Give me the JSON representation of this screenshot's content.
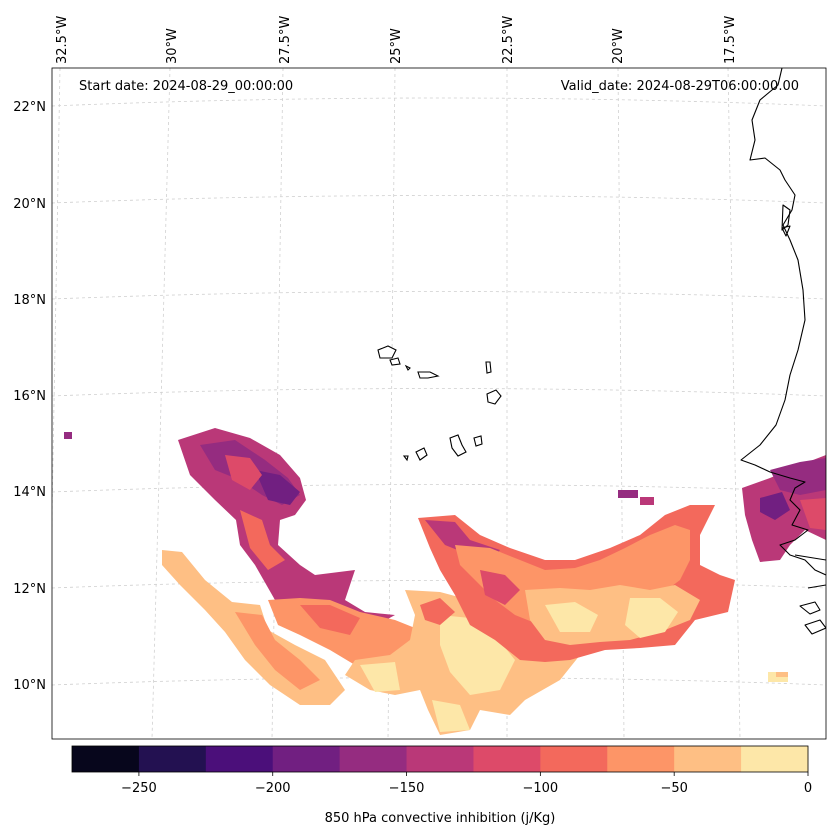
{
  "annotations": {
    "start_date": "Start date: 2024-08-29_00:00:00",
    "valid_date": "Valid_date: 2024-08-29T06:00:00.00"
  },
  "map": {
    "projection": "lambert-conformal",
    "lon_ticks": [
      "32.5°W",
      "30°W",
      "27.5°W",
      "25°W",
      "22.5°W",
      "20°W",
      "17.5°W"
    ],
    "lat_ticks": [
      "22°N",
      "20°N",
      "18°N",
      "16°N",
      "14°N",
      "12°N",
      "10°N"
    ],
    "gridlines": true,
    "features": [
      "coastline",
      "cape-verde-islands",
      "west-africa-coast"
    ]
  },
  "colorbar": {
    "label": "850 hPa convective inhibition (j/Kg)",
    "tick_labels": [
      "−250",
      "−200",
      "−150",
      "−100",
      "−50",
      "0"
    ],
    "levels": [
      -275,
      -250,
      -225,
      -200,
      -175,
      -150,
      -125,
      -100,
      -75,
      -50,
      -25,
      0
    ],
    "colors": [
      "#07061c",
      "#231151",
      "#4b0f7a",
      "#711f81",
      "#952c80",
      "#ba3878",
      "#dd4a69",
      "#f3695c",
      "#fd9567",
      "#febf84",
      "#fde7a8"
    ]
  }
}
